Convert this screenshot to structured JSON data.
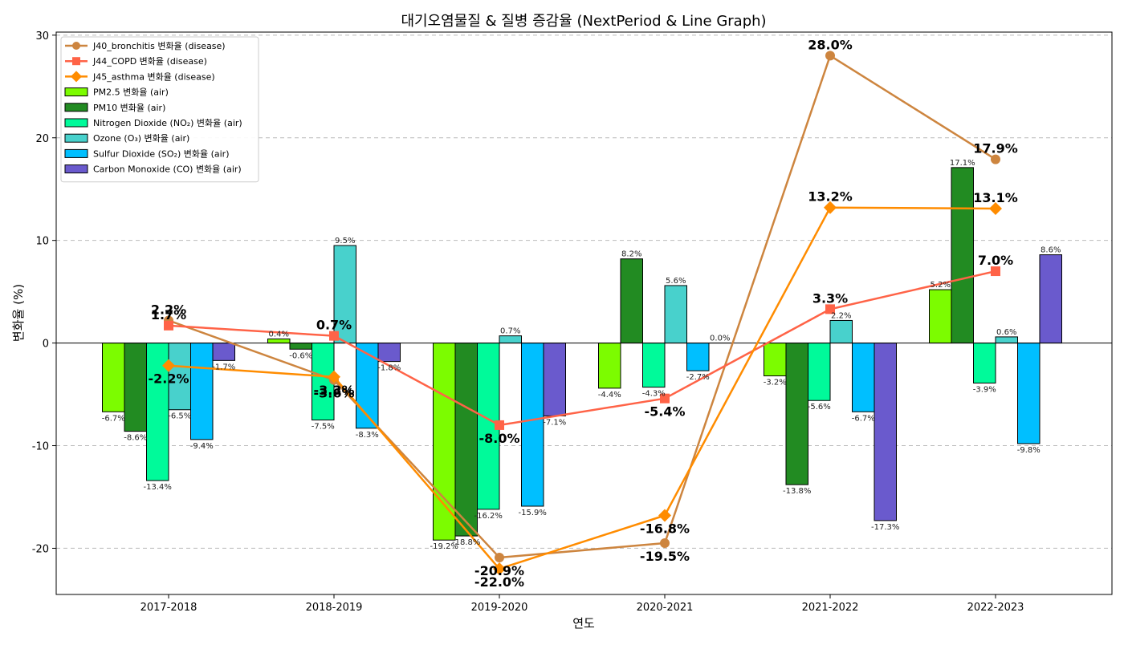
{
  "chart_data": {
    "type": "bar",
    "title": "대기오염물질 & 질병 증감율 (NextPeriod & Line Graph)",
    "xlabel": "연도",
    "ylabel": "변화율 (%)",
    "ylim": [
      -24.5,
      30.3
    ],
    "yticks": [
      -20,
      -10,
      0,
      10,
      20,
      30
    ],
    "grid": true,
    "legend_position": "top-left",
    "categories": [
      "2017-2018",
      "2018-2019",
      "2019-2020",
      "2020-2021",
      "2021-2022",
      "2022-2023"
    ],
    "bar_series": [
      {
        "name": "PM2.5 변화율 (air)",
        "color": "#7CFC00",
        "values": [
          -6.7,
          0.4,
          -19.2,
          -4.4,
          -3.2,
          5.2
        ],
        "labels": [
          "-6.7%",
          "0.4%",
          "-19.2%",
          "-4.4%",
          "-3.2%",
          "5.2%"
        ]
      },
      {
        "name": "PM10 변화율 (air)",
        "color": "#228B22",
        "values": [
          -8.6,
          -0.6,
          -18.8,
          8.2,
          -13.8,
          17.1
        ],
        "labels": [
          "-8.6%",
          "-0.6%",
          "-18.8%",
          "8.2%",
          "-13.8%",
          "17.1%"
        ]
      },
      {
        "name": "Nitrogen Dioxide (NO₂) 변화율 (air)",
        "color": "#00FA9A",
        "values": [
          -13.4,
          -7.5,
          -16.2,
          -4.3,
          -5.6,
          -3.9
        ],
        "labels": [
          "-13.4%",
          "-7.5%",
          "-16.2%",
          "-4.3%",
          "-5.6%",
          "-3.9%"
        ]
      },
      {
        "name": "Ozone (O₃) 변화율 (air)",
        "color": "#48D1CC",
        "values": [
          -6.5,
          9.5,
          0.7,
          5.6,
          2.2,
          0.6
        ],
        "labels": [
          "-6.5%",
          "9.5%",
          "0.7%",
          "5.6%",
          "2.2%",
          "0.6%"
        ]
      },
      {
        "name": "Sulfur Dioxide (SO₂) 변화율 (air)",
        "color": "#00BFFF",
        "values": [
          -9.4,
          -8.3,
          -15.9,
          -2.7,
          -6.7,
          -9.8
        ],
        "labels": [
          "-9.4%",
          "-8.3%",
          "-15.9%",
          "-2.7%",
          "-6.7%",
          "-9.8%"
        ]
      },
      {
        "name": "Carbon Monoxide (CO) 변화율 (air)",
        "color": "#6A5ACD",
        "values": [
          -1.7,
          -1.8,
          -7.1,
          0.0,
          -17.3,
          8.6
        ],
        "labels": [
          "-1.7%",
          "-1.8%",
          "-7.1%",
          "0.0%",
          "-17.3%",
          "8.6%"
        ]
      }
    ],
    "line_series": [
      {
        "name": "J40_bronchitis 변화율 (disease)",
        "color": "#CD853F",
        "marker": "circle",
        "values": [
          2.2,
          -3.6,
          -20.9,
          -19.5,
          28.0,
          17.9
        ],
        "labels": [
          "2.2%",
          "-3.6%",
          "-20.9%",
          "-19.5%",
          "28.0%",
          "17.9%"
        ]
      },
      {
        "name": "J44_COPD 변화율 (disease)",
        "color": "#FF6347",
        "marker": "square",
        "values": [
          1.7,
          0.7,
          -8.0,
          -5.4,
          3.3,
          7.0
        ],
        "labels": [
          "1.7%",
          "0.7%",
          "-8.0%",
          "-5.4%",
          "3.3%",
          "7.0%"
        ]
      },
      {
        "name": "J45_asthma 변화율 (disease)",
        "color": "#FF8C00",
        "marker": "diamond",
        "values": [
          -2.2,
          -3.3,
          -22.0,
          -16.8,
          13.2,
          13.1
        ],
        "labels": [
          "-2.2%",
          "-3.3%",
          "-22.0%",
          "-16.8%",
          "13.2%",
          "13.1%"
        ]
      }
    ]
  }
}
